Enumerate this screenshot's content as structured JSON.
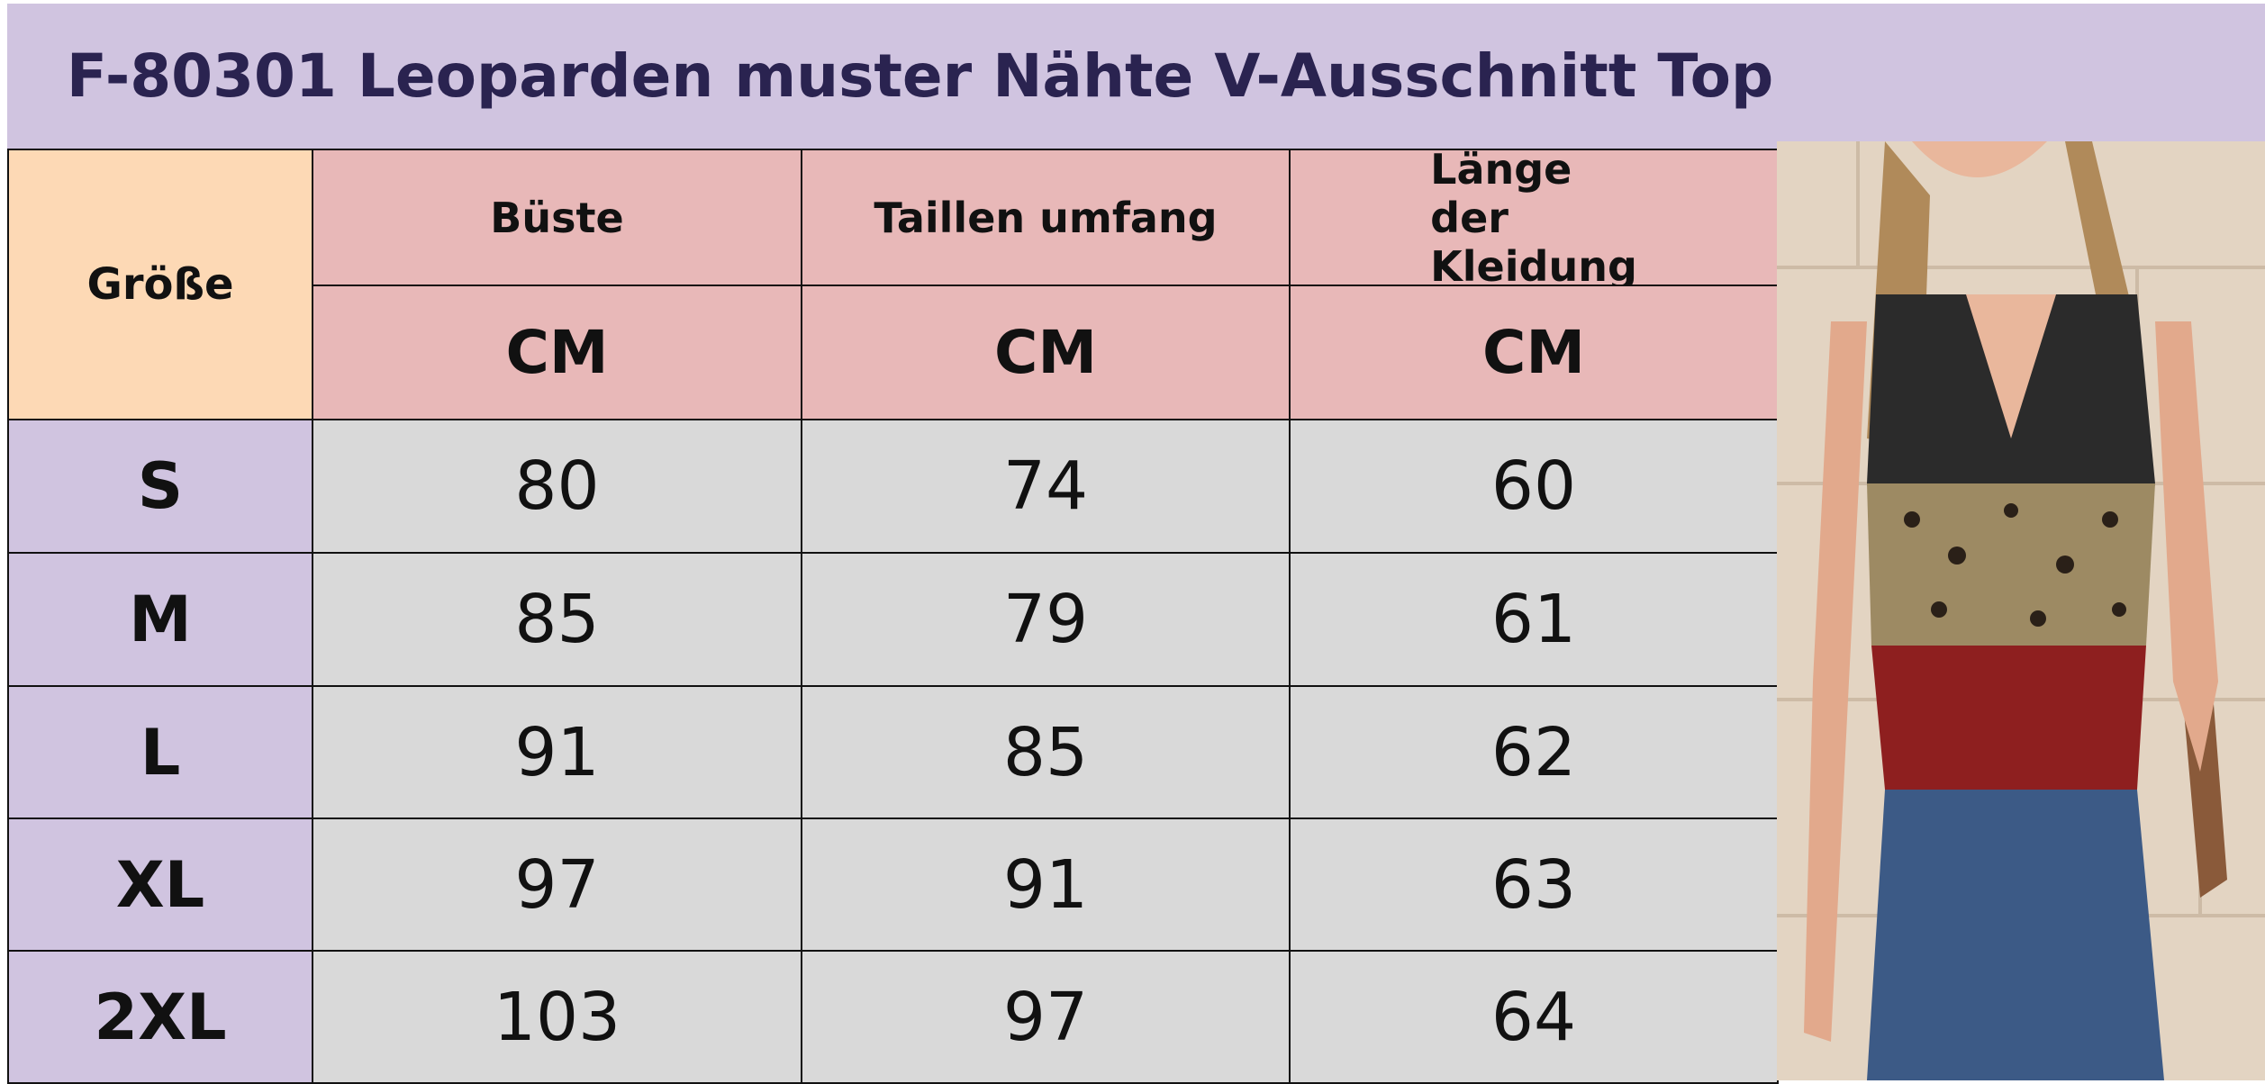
{
  "title": "F-80301 Leoparden muster Nähte V-Ausschnitt Top",
  "table": {
    "size_header": "Größe",
    "columns": [
      "Büste",
      "Taillen umfang",
      "Länge der Kleidung"
    ],
    "units": [
      "CM",
      "CM",
      "CM"
    ],
    "rows": [
      [
        "S",
        80,
        74,
        60
      ],
      [
        "M",
        85,
        79,
        61
      ],
      [
        "L",
        91,
        85,
        62
      ],
      [
        "XL",
        97,
        91,
        63
      ],
      [
        "2XL",
        103,
        97,
        64
      ]
    ]
  }
}
